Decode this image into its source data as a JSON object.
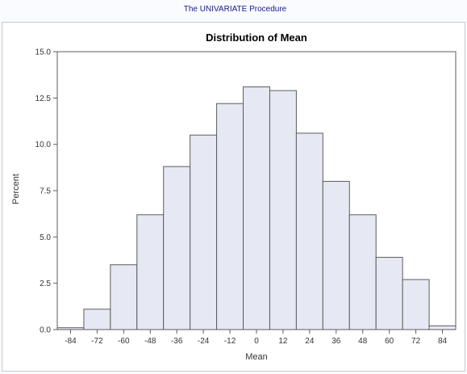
{
  "header": {
    "procedure_title": "The UNIVARIATE Procedure"
  },
  "chart_data": {
    "type": "bar",
    "title": "Distribution of Mean",
    "xlabel": "Mean",
    "ylabel": "Percent",
    "bin_width": 12,
    "bin_midpoints": [
      -90,
      -78,
      -66,
      -54,
      -42,
      -30,
      -18,
      -6,
      6,
      18,
      30,
      42,
      54,
      66,
      78,
      90
    ],
    "values": [
      0.1,
      1.1,
      3.5,
      6.2,
      8.8,
      10.5,
      12.2,
      13.1,
      12.9,
      10.6,
      8.0,
      6.2,
      3.9,
      2.7,
      0.2
    ],
    "bins_start": -90,
    "x_ticks": [
      -84,
      -72,
      -60,
      -48,
      -36,
      -24,
      -12,
      0,
      12,
      24,
      36,
      48,
      60,
      72,
      84
    ],
    "y_ticks": [
      "0.0",
      "2.5",
      "5.0",
      "7.5",
      "10.0",
      "12.5",
      "15.0"
    ],
    "xlim": [
      -90,
      90
    ],
    "ylim": [
      0,
      15
    ],
    "colors": {
      "bar_fill": "#e6e9f3",
      "bar_stroke": "#5c5c5c",
      "title": "#1a1a8c"
    }
  }
}
